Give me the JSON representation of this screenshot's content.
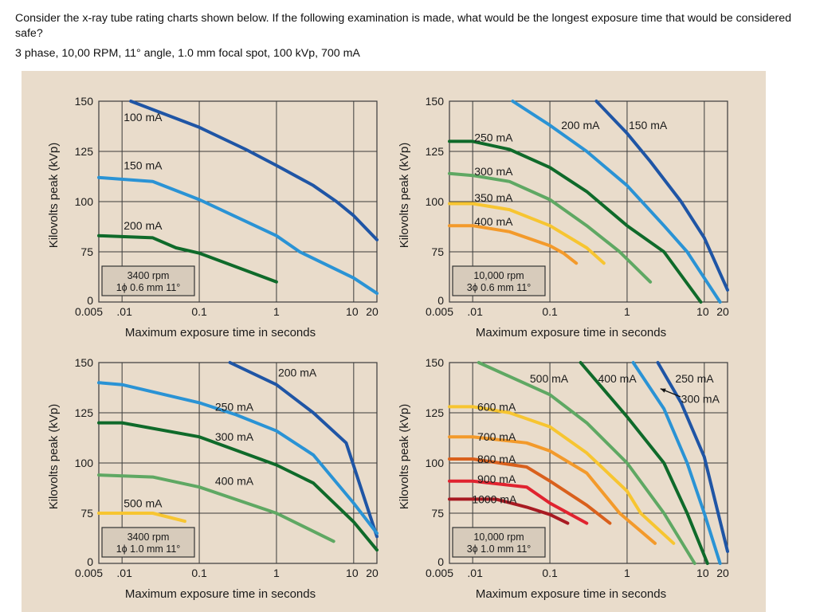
{
  "question": {
    "text": "Consider the  x-ray tube rating charts shown below.  If the following examination is made, what would be the longest exposure time that would be considered safe?",
    "parameters": "3 phase, 10,00 RPM, 11° angle, 1.0 mm focal spot, 100 kVp, 700 mA"
  },
  "colors": {
    "background_panel": "#e9dccb",
    "info_box": "#d7cbbb",
    "grid": "#3a3a3a"
  },
  "chart_data": [
    {
      "type": "line",
      "id": "chart-3400-1ph-0.6",
      "box_label": [
        "3400 rpm",
        "1ϕ 0.6 mm 11°"
      ],
      "xlabel": "Maximum exposure time in seconds",
      "ylabel": "Kilovolts peak (kVp)",
      "xscale": "log",
      "xlim": [
        0.005,
        20
      ],
      "x_ticks": [
        0.005,
        0.01,
        0.1,
        1,
        10,
        20
      ],
      "x_tick_labels": [
        "0.005",
        ".01",
        "0.1",
        "1",
        "10",
        "20"
      ],
      "ylim": [
        0,
        150
      ],
      "y_ticks": [
        0,
        75,
        100,
        125,
        150
      ],
      "y_tick_labels": [
        "0",
        "75",
        "100",
        "125",
        "150"
      ],
      "grid": true,
      "series": [
        {
          "name": "100 mA",
          "color": "#1f55a5",
          "points": [
            [
              0.013,
              150
            ],
            [
              0.1,
              137
            ],
            [
              0.4,
              126
            ],
            [
              1,
              118
            ],
            [
              3,
              108
            ],
            [
              6,
              100
            ],
            [
              10,
              93
            ],
            [
              20,
              81
            ]
          ]
        },
        {
          "name": "150 mA",
          "color": "#2a93d5",
          "points": [
            [
              0.005,
              112
            ],
            [
              0.025,
              110
            ],
            [
              0.1,
              101
            ],
            [
              1,
              83
            ],
            [
              2,
              75
            ],
            [
              10,
              36
            ],
            [
              20,
              13
            ]
          ]
        },
        {
          "name": "200 mA",
          "color": "#0f6a2a",
          "points": [
            [
              0.005,
              83
            ],
            [
              0.025,
              82
            ],
            [
              0.05,
              77
            ],
            [
              0.1,
              73
            ],
            [
              1,
              30
            ]
          ]
        }
      ],
      "labels": [
        {
          "text": "100 mA",
          "at": [
            0.0105,
            142
          ]
        },
        {
          "text": "150 mA",
          "at": [
            0.0105,
            118
          ]
        },
        {
          "text": "200 mA",
          "at": [
            0.0105,
            88
          ]
        }
      ]
    },
    {
      "type": "line",
      "id": "chart-10000-3ph-0.6",
      "box_label": [
        "10,000 rpm",
        "3ϕ 0.6 mm 11°"
      ],
      "xlabel": "Maximum exposure time in seconds",
      "ylabel": "Kilovolts peak (kVp)",
      "xscale": "log",
      "xlim": [
        0.005,
        20
      ],
      "x_ticks": [
        0.005,
        0.01,
        0.1,
        1,
        10,
        20
      ],
      "x_tick_labels": [
        "0.005",
        ".01",
        "0.1",
        "1",
        "10",
        "20"
      ],
      "ylim": [
        0,
        150
      ],
      "y_ticks": [
        0,
        75,
        100,
        125,
        150
      ],
      "y_tick_labels": [
        "0",
        "75",
        "100",
        "125",
        "150"
      ],
      "grid": true,
      "series": [
        {
          "name": "150 mA",
          "color": "#1f55a5",
          "points": [
            [
              0.4,
              150
            ],
            [
              1,
              134
            ],
            [
              2,
              120
            ],
            [
              5,
              100
            ],
            [
              10,
              82
            ],
            [
              20,
              18
            ]
          ]
        },
        {
          "name": "200 mA",
          "color": "#2a93d5",
          "points": [
            [
              0.033,
              150
            ],
            [
              0.1,
              138
            ],
            [
              0.3,
              125
            ],
            [
              1,
              108
            ],
            [
              3,
              88
            ],
            [
              6,
              75
            ],
            [
              16,
              0
            ]
          ]
        },
        {
          "name": "250 mA",
          "color": "#0f6a2a",
          "points": [
            [
              0.005,
              130
            ],
            [
              0.01,
              130
            ],
            [
              0.03,
              126
            ],
            [
              0.1,
              117
            ],
            [
              0.3,
              105
            ],
            [
              1,
              88
            ],
            [
              3,
              75
            ],
            [
              9,
              0
            ]
          ]
        },
        {
          "name": "300 mA",
          "color": "#5fa863",
          "points": [
            [
              0.005,
              114
            ],
            [
              0.01,
              113
            ],
            [
              0.03,
              110
            ],
            [
              0.1,
              101
            ],
            [
              0.3,
              88
            ],
            [
              0.8,
              75
            ],
            [
              2,
              30
            ]
          ]
        },
        {
          "name": "350 mA",
          "color": "#f7c531",
          "points": [
            [
              0.005,
              99
            ],
            [
              0.01,
              99
            ],
            [
              0.03,
              96
            ],
            [
              0.1,
              88
            ],
            [
              0.3,
              77
            ],
            [
              0.5,
              58
            ]
          ]
        },
        {
          "name": "400 mA",
          "color": "#f39a2b",
          "points": [
            [
              0.005,
              88
            ],
            [
              0.01,
              88
            ],
            [
              0.03,
              85
            ],
            [
              0.1,
              78
            ],
            [
              0.15,
              73
            ],
            [
              0.22,
              58
            ]
          ]
        }
      ],
      "labels": [
        {
          "text": "200 mA",
          "at": [
            0.14,
            138
          ]
        },
        {
          "text": "150 mA",
          "at": [
            1.05,
            138
          ]
        },
        {
          "text": "250 mA",
          "at": [
            0.0105,
            132
          ]
        },
        {
          "text": "300 mA",
          "at": [
            0.0105,
            115
          ]
        },
        {
          "text": "350 mA",
          "at": [
            0.0105,
            102
          ]
        },
        {
          "text": "400 mA",
          "at": [
            0.0105,
            90
          ]
        }
      ]
    },
    {
      "type": "line",
      "id": "chart-3400-1ph-1.0",
      "box_label": [
        "3400 rpm",
        "1ϕ 1.0 mm 11°"
      ],
      "xlabel": "Maximum exposure time in seconds",
      "ylabel": "Kilovolts peak (kVp)",
      "xscale": "log",
      "xlim": [
        0.005,
        20
      ],
      "x_ticks": [
        0.005,
        0.01,
        0.1,
        1,
        10,
        20
      ],
      "x_tick_labels": [
        "0.005",
        ".01",
        "0.1",
        "1",
        "10",
        "20"
      ],
      "ylim": [
        0,
        150
      ],
      "y_ticks": [
        0,
        75,
        100,
        125,
        150
      ],
      "y_tick_labels": [
        "0",
        "75",
        "100",
        "125",
        "150"
      ],
      "grid": true,
      "series": [
        {
          "name": "200 mA",
          "color": "#1f55a5",
          "points": [
            [
              0.25,
              150
            ],
            [
              1,
              139
            ],
            [
              3,
              125
            ],
            [
              8,
              110
            ],
            [
              20,
              40
            ]
          ]
        },
        {
          "name": "250 mA",
          "color": "#2a93d5",
          "points": [
            [
              0.005,
              140
            ],
            [
              0.01,
              139
            ],
            [
              0.1,
              130
            ],
            [
              0.3,
              124
            ],
            [
              1,
              116
            ],
            [
              3,
              104
            ],
            [
              10,
              80
            ],
            [
              20,
              45
            ]
          ]
        },
        {
          "name": "300 mA",
          "color": "#0f6a2a",
          "points": [
            [
              0.005,
              120
            ],
            [
              0.01,
              120
            ],
            [
              0.1,
              113
            ],
            [
              1,
              99
            ],
            [
              3,
              90
            ],
            [
              10,
              62
            ],
            [
              20,
              20
            ]
          ]
        },
        {
          "name": "400 mA",
          "color": "#5fa863",
          "points": [
            [
              0.005,
              94
            ],
            [
              0.025,
              93
            ],
            [
              0.1,
              88
            ],
            [
              1,
              75
            ],
            [
              5.5,
              33
            ]
          ]
        },
        {
          "name": "500 mA",
          "color": "#f7c531",
          "points": [
            [
              0.005,
              75
            ],
            [
              0.025,
              75
            ],
            [
              0.065,
              63
            ]
          ]
        }
      ],
      "labels": [
        {
          "text": "200 mA",
          "at": [
            1.05,
            145
          ]
        },
        {
          "text": "250 mA",
          "at": [
            0.16,
            128
          ]
        },
        {
          "text": "300 mA",
          "at": [
            0.16,
            113
          ]
        },
        {
          "text": "400 mA",
          "at": [
            0.16,
            91
          ]
        },
        {
          "text": "500 mA",
          "at": [
            0.0105,
            80
          ]
        }
      ]
    },
    {
      "type": "line",
      "id": "chart-10000-3ph-1.0",
      "box_label": [
        "10,000 rpm",
        "3ϕ 1.0 mm 11°"
      ],
      "xlabel": "Maximum exposure time in seconds",
      "ylabel": "Kilovolts peak (kVp)",
      "xscale": "log",
      "xlim": [
        0.005,
        20
      ],
      "x_ticks": [
        0.005,
        0.01,
        0.1,
        1,
        10,
        20
      ],
      "x_tick_labels": [
        "0.005",
        ".01",
        "0.1",
        "1",
        "10",
        "20"
      ],
      "ylim": [
        0,
        150
      ],
      "y_ticks": [
        0,
        75,
        100,
        125,
        150
      ],
      "y_tick_labels": [
        "0",
        "75",
        "100",
        "125",
        "150"
      ],
      "grid": true,
      "series": [
        {
          "name": "250 mA",
          "color": "#1f55a5",
          "points": [
            [
              2.5,
              150
            ],
            [
              5,
              130
            ],
            [
              10,
              103
            ],
            [
              20,
              18
            ]
          ]
        },
        {
          "name": "300 mA",
          "color": "#2a93d5",
          "points": [
            [
              1.2,
              150
            ],
            [
              3,
              127
            ],
            [
              6,
              100
            ],
            [
              10,
              75
            ],
            [
              16,
              0
            ]
          ]
        },
        {
          "name": "400 mA",
          "color": "#0f6a2a",
          "points": [
            [
              0.25,
              150
            ],
            [
              1,
              123
            ],
            [
              3,
              100
            ],
            [
              6,
              75
            ],
            [
              11,
              0
            ]
          ]
        },
        {
          "name": "500 mA",
          "color": "#5fa863",
          "points": [
            [
              0.012,
              150
            ],
            [
              0.1,
              134
            ],
            [
              0.3,
              120
            ],
            [
              1,
              100
            ],
            [
              3,
              75
            ],
            [
              7.5,
              0
            ]
          ]
        },
        {
          "name": "600 mA",
          "color": "#f7c531",
          "points": [
            [
              0.005,
              128
            ],
            [
              0.01,
              128
            ],
            [
              0.03,
              125
            ],
            [
              0.1,
              118
            ],
            [
              0.3,
              105
            ],
            [
              1,
              86
            ],
            [
              1.5,
              75
            ],
            [
              4,
              30
            ]
          ]
        },
        {
          "name": "700 mA",
          "color": "#f39a2b",
          "points": [
            [
              0.005,
              113
            ],
            [
              0.01,
              113
            ],
            [
              0.05,
              110
            ],
            [
              0.1,
              106
            ],
            [
              0.3,
              95
            ],
            [
              0.8,
              75
            ],
            [
              2.3,
              30
            ]
          ]
        },
        {
          "name": "800 mA",
          "color": "#d9601c",
          "points": [
            [
              0.005,
              102
            ],
            [
              0.01,
              102
            ],
            [
              0.05,
              98
            ],
            [
              0.1,
              91
            ],
            [
              0.3,
              79
            ],
            [
              0.6,
              60
            ]
          ]
        },
        {
          "name": "900 mA",
          "color": "#e0232f",
          "points": [
            [
              0.005,
              91
            ],
            [
              0.01,
              91
            ],
            [
              0.05,
              88
            ],
            [
              0.1,
              80
            ],
            [
              0.3,
              60
            ]
          ]
        },
        {
          "name": "1000 mA",
          "color": "#a81a22",
          "points": [
            [
              0.005,
              82
            ],
            [
              0.02,
              82
            ],
            [
              0.05,
              78
            ],
            [
              0.1,
              73
            ],
            [
              0.17,
              60
            ]
          ]
        }
      ],
      "labels": [
        {
          "text": "500 mA",
          "at": [
            0.055,
            142
          ]
        },
        {
          "text": "400 mA",
          "at": [
            0.42,
            142
          ]
        },
        {
          "text": "250 mA",
          "at": [
            4.2,
            142
          ]
        },
        {
          "text": "300 mA",
          "at": [
            5.0,
            132
          ]
        },
        {
          "text": "600 mA",
          "at": [
            0.0115,
            128
          ]
        },
        {
          "text": "700 mA",
          "at": [
            0.0115,
            113
          ]
        },
        {
          "text": "800 mA",
          "at": [
            0.0115,
            102
          ]
        },
        {
          "text": "900 mA",
          "at": [
            0.0115,
            92
          ]
        },
        {
          "text": "1000 mA",
          "at": [
            0.0098,
            82
          ]
        }
      ],
      "annotations": [
        {
          "type": "arrow",
          "from": [
            4.9,
            133
          ],
          "to": [
            2.7,
            137
          ],
          "points_to": "300 mA"
        }
      ]
    }
  ]
}
